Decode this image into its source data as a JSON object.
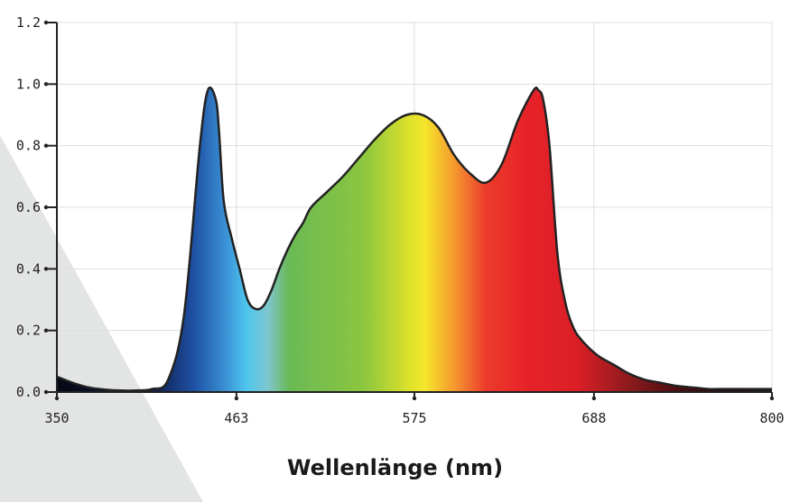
{
  "chart_data": {
    "type": "area",
    "title": "",
    "xlabel": "Wellenlänge (nm)",
    "ylabel": "",
    "xlim": [
      350,
      800
    ],
    "ylim": [
      0,
      1.2
    ],
    "x_ticks": [
      "350",
      "463",
      "575",
      "688",
      "800"
    ],
    "y_ticks": [
      "0.0",
      "0.2",
      "0.4",
      "0.6",
      "0.8",
      "1.0",
      "1.2"
    ],
    "grid": true,
    "series": [
      {
        "x": [
          350,
          360,
          370,
          380,
          390,
          400,
          410,
          420,
          430,
          440,
          445,
          450,
          452,
          455,
          460,
          465,
          470,
          475,
          480,
          485,
          490,
          495,
          500,
          505,
          510,
          520,
          530,
          540,
          550,
          560,
          570,
          580,
          590,
          600,
          610,
          620,
          630,
          640,
          650,
          653,
          656,
          660,
          665,
          670,
          675,
          680,
          690,
          700,
          710,
          720,
          730,
          740,
          750,
          760,
          770,
          780,
          790,
          800
        ],
        "y": [
          0.05,
          0.03,
          0.015,
          0.008,
          0.005,
          0.005,
          0.01,
          0.04,
          0.25,
          0.8,
          0.98,
          0.95,
          0.85,
          0.62,
          0.5,
          0.4,
          0.3,
          0.27,
          0.28,
          0.33,
          0.4,
          0.46,
          0.51,
          0.55,
          0.6,
          0.65,
          0.7,
          0.76,
          0.82,
          0.87,
          0.9,
          0.9,
          0.86,
          0.77,
          0.71,
          0.68,
          0.74,
          0.88,
          0.98,
          0.98,
          0.95,
          0.8,
          0.45,
          0.29,
          0.21,
          0.17,
          0.12,
          0.09,
          0.06,
          0.04,
          0.03,
          0.02,
          0.015,
          0.01,
          0.01,
          0.01,
          0.01,
          0.01
        ]
      }
    ],
    "colors": {
      "axis": "#222222",
      "grid": "#dddddd",
      "outline": "#222222",
      "background_triangle": "#e3e5e4"
    }
  }
}
